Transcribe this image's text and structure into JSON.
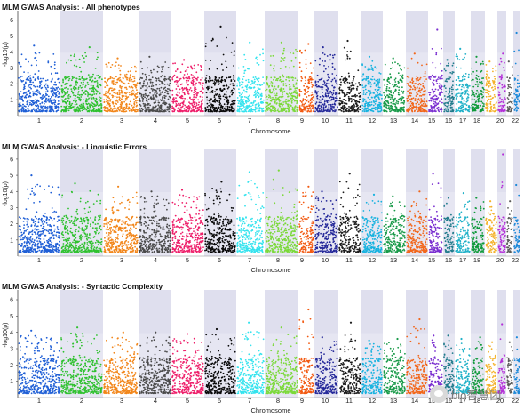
{
  "chart_data": [
    {
      "type": "scatter",
      "title": "MLM GWAS Analysis: - All phenotypes",
      "xlabel": "Chromosome",
      "ylabel": "-log10(p)",
      "ylim": [
        0,
        6.6
      ],
      "yticks": [
        1,
        2,
        3,
        4,
        5,
        6
      ],
      "grid": "off",
      "categories": [
        "1",
        "2",
        "3",
        "4",
        "5",
        "6",
        "7",
        "8",
        "9",
        "10",
        "11",
        "12",
        "13",
        "14",
        "15",
        "16",
        "17",
        "18",
        "20",
        "22"
      ],
      "peaks": [
        {
          "chromosome": "1",
          "max": 4.4
        },
        {
          "chromosome": "2",
          "max": 4.3
        },
        {
          "chromosome": "3",
          "max": 3.6
        },
        {
          "chromosome": "4",
          "max": 3.7
        },
        {
          "chromosome": "5",
          "max": 3.5
        },
        {
          "chromosome": "6",
          "max": 5.6
        },
        {
          "chromosome": "7",
          "max": 4.6
        },
        {
          "chromosome": "8",
          "max": 4.6
        },
        {
          "chromosome": "9",
          "max": 4.5
        },
        {
          "chromosome": "10",
          "max": 4.3
        },
        {
          "chromosome": "11",
          "max": 4.7
        },
        {
          "chromosome": "12",
          "max": 3.7
        },
        {
          "chromosome": "13",
          "max": 3.6
        },
        {
          "chromosome": "14",
          "max": 3.9
        },
        {
          "chromosome": "15",
          "max": 5.4
        },
        {
          "chromosome": "16",
          "max": 3.5
        },
        {
          "chromosome": "17",
          "max": 4.2
        },
        {
          "chromosome": "18",
          "max": 3.7
        },
        {
          "chromosome": "20",
          "max": 3.9
        },
        {
          "chromosome": "22",
          "max": 5.2
        }
      ]
    },
    {
      "type": "scatter",
      "title": "MLM GWAS Analysis: - Linguistic Errors",
      "xlabel": "Chromosome",
      "ylabel": "-log10(p)",
      "ylim": [
        0,
        6.6
      ],
      "yticks": [
        1,
        2,
        3,
        4,
        5,
        6
      ],
      "grid": "off",
      "categories": [
        "1",
        "2",
        "3",
        "4",
        "5",
        "6",
        "7",
        "8",
        "9",
        "10",
        "11",
        "12",
        "13",
        "14",
        "15",
        "16",
        "17",
        "18",
        "20",
        "22"
      ],
      "peaks": [
        {
          "chromosome": "1",
          "max": 5.0
        },
        {
          "chromosome": "2",
          "max": 4.5
        },
        {
          "chromosome": "3",
          "max": 4.3
        },
        {
          "chromosome": "4",
          "max": 4.0
        },
        {
          "chromosome": "5",
          "max": 4.1
        },
        {
          "chromosome": "6",
          "max": 4.6
        },
        {
          "chromosome": "7",
          "max": 5.2
        },
        {
          "chromosome": "8",
          "max": 5.3
        },
        {
          "chromosome": "9",
          "max": 4.3
        },
        {
          "chromosome": "10",
          "max": 4.0
        },
        {
          "chromosome": "11",
          "max": 5.1
        },
        {
          "chromosome": "12",
          "max": 3.8
        },
        {
          "chromosome": "13",
          "max": 3.7
        },
        {
          "chromosome": "14",
          "max": 4.0
        },
        {
          "chromosome": "15",
          "max": 5.1
        },
        {
          "chromosome": "16",
          "max": 3.6
        },
        {
          "chromosome": "17",
          "max": 3.9
        },
        {
          "chromosome": "18",
          "max": 3.6
        },
        {
          "chromosome": "20",
          "max": 6.3
        },
        {
          "chromosome": "22",
          "max": 4.4
        }
      ]
    },
    {
      "type": "scatter",
      "title": "MLM GWAS Analysis: - Syntactic Complexity",
      "xlabel": "Chromosome",
      "ylabel": "-log10(p)",
      "ylim": [
        0,
        6.6
      ],
      "yticks": [
        1,
        2,
        3,
        4,
        5,
        6
      ],
      "grid": "off",
      "categories": [
        "1",
        "2",
        "3",
        "4",
        "5",
        "6",
        "7",
        "8",
        "9",
        "10",
        "11",
        "12",
        "13",
        "14",
        "15",
        "16",
        "17",
        "18",
        "20",
        "22"
      ],
      "peaks": [
        {
          "chromosome": "1",
          "max": 4.1
        },
        {
          "chromosome": "2",
          "max": 4.3
        },
        {
          "chromosome": "3",
          "max": 4.0
        },
        {
          "chromosome": "4",
          "max": 4.0
        },
        {
          "chromosome": "5",
          "max": 3.9
        },
        {
          "chromosome": "6",
          "max": 4.2
        },
        {
          "chromosome": "7",
          "max": 4.6
        },
        {
          "chromosome": "8",
          "max": 4.3
        },
        {
          "chromosome": "9",
          "max": 5.4
        },
        {
          "chromosome": "10",
          "max": 3.7
        },
        {
          "chromosome": "11",
          "max": 4.6
        },
        {
          "chromosome": "12",
          "max": 3.5
        },
        {
          "chromosome": "13",
          "max": 3.6
        },
        {
          "chromosome": "14",
          "max": 4.8
        },
        {
          "chromosome": "15",
          "max": 3.8
        },
        {
          "chromosome": "16",
          "max": 3.8
        },
        {
          "chromosome": "17",
          "max": 3.6
        },
        {
          "chromosome": "18",
          "max": 3.7
        },
        {
          "chromosome": "20",
          "max": 4.5
        },
        {
          "chromosome": "22",
          "max": 3.7
        }
      ]
    }
  ],
  "colors": {
    "chromosomes": [
      "#1f5fd6",
      "#2fc12f",
      "#f2861a",
      "#4a4a4a",
      "#ee1f6a",
      "#0a0a0a",
      "#35e3ee",
      "#7bd93a",
      "#f25a12",
      "#25299a",
      "#1c1c1c",
      "#17b2df",
      "#199a49",
      "#f2661a",
      "#7a2fd0",
      "#1f7a8a",
      "#21b1c8",
      "#0f9a3a",
      "#f4b22a",
      "#b42fd8",
      "#5a5a5a",
      "#1a88d8"
    ],
    "band_even": "#e6e6f2",
    "band_odd": "#ffffff"
  },
  "watermark": {
    "text": "bio智慧团",
    "icon": "wechat-icon"
  }
}
